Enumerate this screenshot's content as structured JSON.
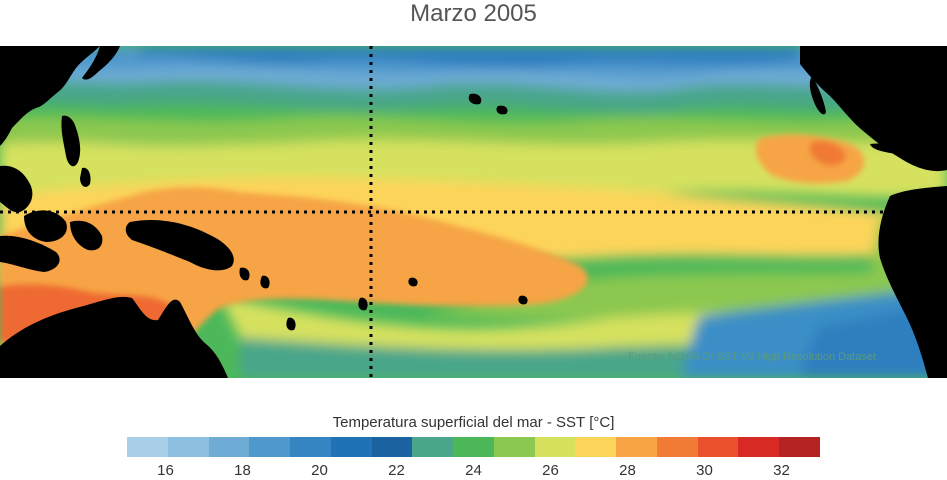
{
  "title": "Marzo 2005",
  "source_note": "Fuente: NOAA OI SST V2 High Resolution Dataset",
  "legend": {
    "label": "Temperatura superficial del mar - SST",
    "unit": "[°C]",
    "min": 15,
    "max": 33,
    "ticks": [
      "16",
      "18",
      "20",
      "22",
      "24",
      "26",
      "28",
      "30",
      "32"
    ],
    "colors": [
      "#a9cfe8",
      "#8dbfe0",
      "#6eacd6",
      "#4f98cc",
      "#3585c2",
      "#1f72b5",
      "#1a62a0",
      "#4aa68a",
      "#4cb85a",
      "#8cc850",
      "#d6e15e",
      "#fdd45a",
      "#f6a444",
      "#f17a35",
      "#e9502b",
      "#d72a25",
      "#b52222"
    ]
  },
  "map": {
    "region": "Pacífico tropical",
    "land_color": "#000000",
    "reference_lines": [
      "ecuador",
      "meridiano"
    ]
  }
}
